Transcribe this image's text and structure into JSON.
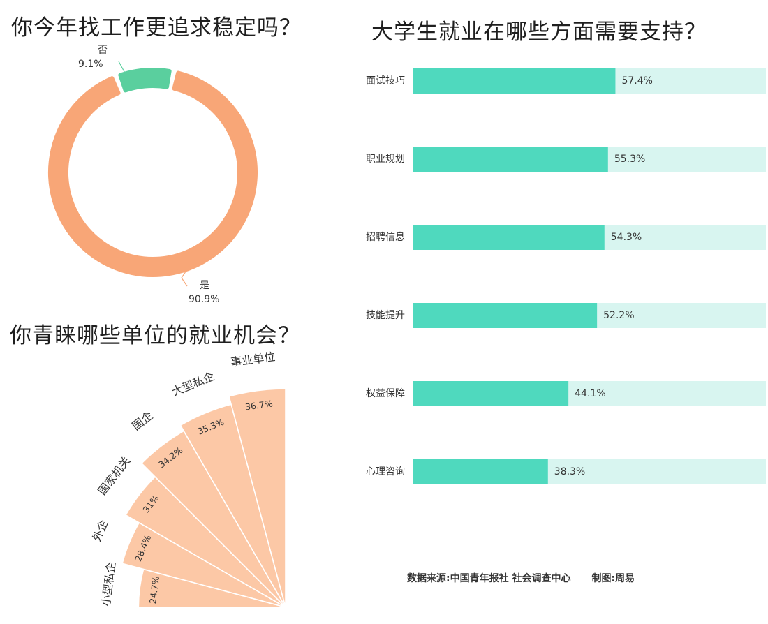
{
  "colors": {
    "orange": "#F8A677",
    "green": "#5ACF9E",
    "fan_fill": "#FCC8A6",
    "bar_fill": "#4FD9BE",
    "bar_track": "#D8F5F0"
  },
  "source": {
    "text": "数据来源:中国青年报社 社会调查中心",
    "credit": "制图:周易"
  },
  "chart_data": [
    {
      "type": "pie",
      "title": "你今年找工作更追求稳定吗？",
      "slices": [
        {
          "label": "否",
          "value": 9.1,
          "value_label": "9.1%"
        },
        {
          "label": "是",
          "value": 90.9,
          "value_label": "90.9%"
        }
      ],
      "style": "donut"
    },
    {
      "type": "pie",
      "title": "你青睐哪些单位的就业机会？",
      "style": "fan",
      "categories": [
        "小型私企",
        "外企",
        "国家机关",
        "国企",
        "大型私企",
        "事业单位"
      ],
      "values": [
        24.7,
        28.4,
        31,
        34.2,
        35.3,
        36.7
      ],
      "value_labels": [
        "24.7%",
        "28.4%",
        "31%",
        "34.2%",
        "35.3%",
        "36.7%"
      ]
    },
    {
      "type": "bar",
      "title": "大学生就业在哪些方面需要支持？",
      "orientation": "horizontal",
      "categories": [
        "面试技巧",
        "职业规划",
        "招聘信息",
        "技能提升",
        "权益保障",
        "心理咨询"
      ],
      "values": [
        57.4,
        55.3,
        54.3,
        52.2,
        44.1,
        38.3
      ],
      "value_labels": [
        "57.4%",
        "55.3%",
        "54.3%",
        "52.2%",
        "44.1%",
        "38.3%"
      ],
      "xlim": [
        0,
        100
      ]
    }
  ]
}
